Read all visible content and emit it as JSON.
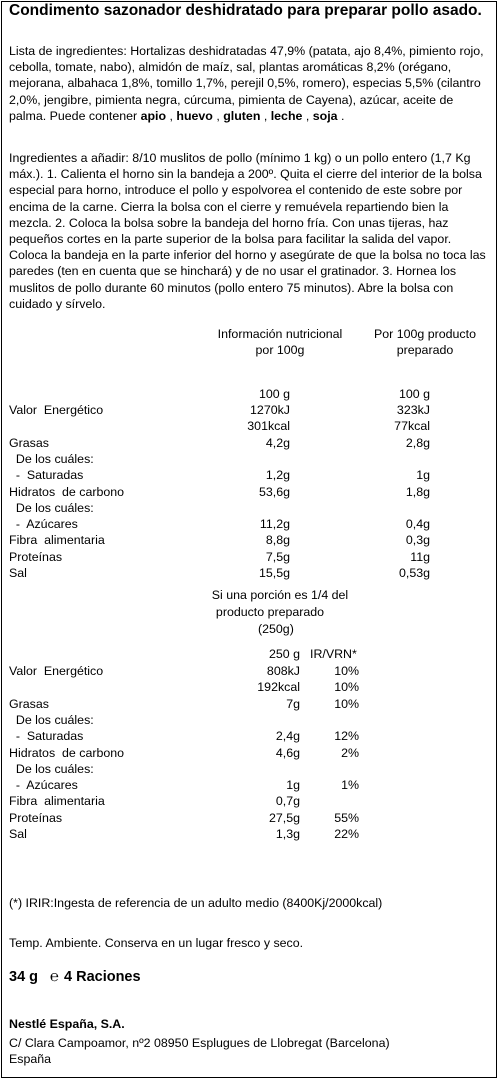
{
  "product_title": "Condimento sazonador deshidratado para preparar pollo asado.",
  "ingredients": {
    "text_before_allergens": "Lista de ingredientes: Hortalizas deshidratadas 47,9% (patata, ajo 8,4%, pimiento rojo, cebolla, tomate, nabo), almidón de maíz, sal, plantas aromáticas 8,2% (orégano, mejorana, albahaca 1,8%, tomillo 1,7%, perejil 0,5%, romero), especias 5,5% (cilantro 2,0%, jengibre, pimienta negra, cúrcuma, pimienta de Cayena), azúcar, aceite de palma. Puede contener ",
    "allergens": [
      "apio",
      "huevo",
      "gluten",
      "leche",
      "soja"
    ],
    "separator": " , ",
    "end": " ."
  },
  "preparation": "Ingredientes a añadir: 8/10 muslitos de pollo (mínimo 1 kg) o un pollo entero (1,7 Kg máx.). 1. Calienta el horno sin la bandeja a 200º. Quita el cierre del interior de la bolsa especial para horno, introduce el pollo y espolvorea el contenido de este sobre por encima de la carne. Cierra la bolsa con el cierre y remuévela repartiendo bien la mezcla. 2. Coloca la bolsa sobre la bandeja del horno fría. Con unas tijeras, haz pequeños cortes en la parte superior de la bolsa para facilitar la salida del vapor. Coloca la bandeja en la parte inferior del horno y asegúrate de que la bolsa no toca las paredes (ten en cuenta que se hinchará) y de no usar el gratinador. 3. Hornea los muslitos de pollo durante 60 minutos (pollo entero 75 minutos). Abre la bolsa con cuidado y sírvelo.",
  "nutrition_table_1": {
    "header_col1": [
      "Información nutricional",
      "por 100g"
    ],
    "header_col2": [
      "Por 100g producto",
      "preparado"
    ],
    "basis_col1": "100 g",
    "basis_col2": "100 g",
    "rows": [
      {
        "label": "Valor  Energético",
        "v1": "1270kJ",
        "v2": "323kJ"
      },
      {
        "label": "",
        "v1": "301kcal",
        "v2": "77kcal"
      },
      {
        "label": "Grasas",
        "v1": "4,2g",
        "v2": "2,8g"
      },
      {
        "label": "  De los cuáles:",
        "v1": "",
        "v2": ""
      },
      {
        "label": "  -  Saturadas",
        "v1": "1,2g",
        "v2": "1g"
      },
      {
        "label": "Hidratos  de carbono",
        "v1": "53,6g",
        "v2": "1,8g"
      },
      {
        "label": "  De los cuáles:",
        "v1": "",
        "v2": ""
      },
      {
        "label": "  -  Azúcares",
        "v1": "11,2g",
        "v2": "0,4g"
      },
      {
        "label": "Fibra  alimentaria",
        "v1": "8,8g",
        "v2": "0,3g"
      },
      {
        "label": "Proteínas",
        "v1": "7,5g",
        "v2": "11g"
      },
      {
        "label": "Sal",
        "v1": "15,5g",
        "v2": "0,53g"
      }
    ]
  },
  "nutrition_table_2": {
    "header": [
      "Si una porción es 1/4 del",
      "producto preparado",
      "(250g)"
    ],
    "basis_col1": "250 g",
    "basis_col2": "IR/VRN*",
    "rows": [
      {
        "label": "Valor  Energético",
        "v1": "808kJ",
        "v2": "10%"
      },
      {
        "label": "",
        "v1": "192kcal",
        "v2": "10%"
      },
      {
        "label": "Grasas",
        "v1": "7g",
        "v2": "10%"
      },
      {
        "label": "  De los cuáles:",
        "v1": "",
        "v2": ""
      },
      {
        "label": "  -  Saturadas",
        "v1": "2,4g",
        "v2": "12%"
      },
      {
        "label": "Hidratos  de carbono",
        "v1": "4,6g",
        "v2": "2%"
      },
      {
        "label": "  De los cuáles:",
        "v1": "",
        "v2": ""
      },
      {
        "label": "  -  Azúcares",
        "v1": "1g",
        "v2": "1%"
      },
      {
        "label": "Fibra  alimentaria",
        "v1": "0,7g",
        "v2": ""
      },
      {
        "label": "Proteínas",
        "v1": "27,5g",
        "v2": "55%"
      },
      {
        "label": "Sal",
        "v1": "1,3g",
        "v2": "22%"
      }
    ]
  },
  "footnote": "(*) IRIR:Ingesta de referencia de un adulto medio (8400Kj/2000kcal)",
  "storage": "Temp. Ambiente. Conserva en un lugar fresco y seco.",
  "net_weight": "34 g",
  "estimated_sign": "℮",
  "portions": "4 Raciones",
  "company": "Nestlé España, S.A.",
  "address": [
    "C/ Clara Campoamor,  nº2 08950 Esplugues de Llobregat (Barcelona)",
    "España"
  ]
}
